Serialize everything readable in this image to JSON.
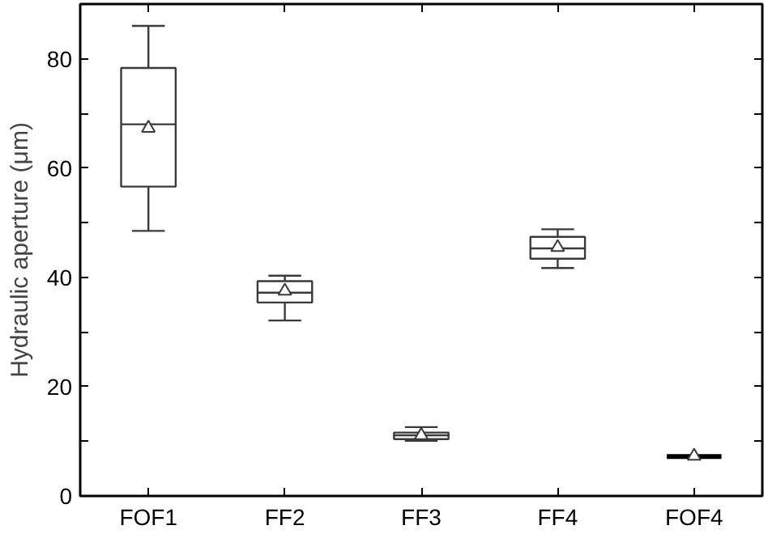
{
  "chart_data": {
    "type": "box",
    "ylabel": "Hydraulic aperture (μm)",
    "categories": [
      "FOF1",
      "FF2",
      "FF3",
      "FF4",
      "FOF4"
    ],
    "boxes": [
      {
        "low": 48.5,
        "q1": 56.6,
        "median": 68,
        "q3": 78.3,
        "high": 86,
        "mean": 67.3
      },
      {
        "low": 32.1,
        "q1": 35.4,
        "median": 37.2,
        "q3": 39.3,
        "high": 40.3,
        "mean": 37.5
      },
      {
        "low": 10.1,
        "q1": 10.4,
        "median": 11.1,
        "q3": 11.6,
        "high": 12.6,
        "mean": 11.1
      },
      {
        "low": 41.7,
        "q1": 43.4,
        "median": 45.3,
        "q3": 47.4,
        "high": 48.8,
        "mean": 45.5
      },
      {
        "low": 7.2,
        "q1": 7.2,
        "median": 7.2,
        "q3": 7.2,
        "high": 7.2,
        "mean": 7.3
      }
    ],
    "ylim": [
      0,
      90
    ],
    "yticks": [
      0,
      {
        "value": 10,
        "label": null
      },
      20,
      {
        "value": 30,
        "label": null
      },
      40,
      {
        "value": 50,
        "label": null
      },
      60,
      {
        "value": 70,
        "label": null
      },
      80
    ],
    "grid": false
  }
}
